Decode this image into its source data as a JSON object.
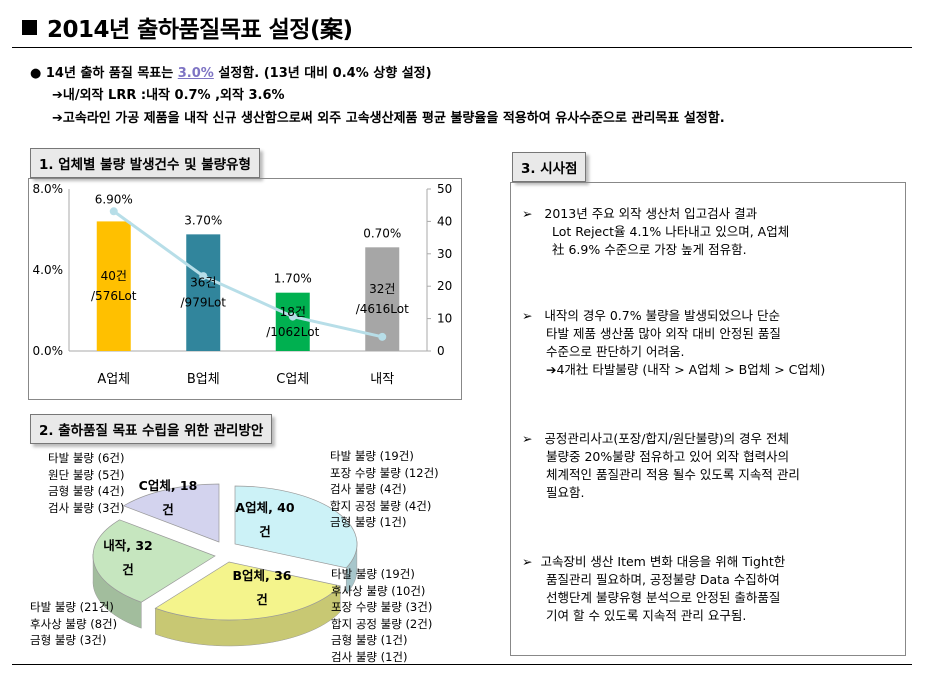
{
  "title": "2014년 출하품질목표 설정(案)",
  "intro": {
    "line1_a": "14년 출하 품질 목표는",
    "line1_target": "3.0%",
    "line1_b": "설정함. (13년 대비 0.4% 상향 설정)",
    "line2": "➔내/외작 LRR :내작 0.7% ,외작 3.6%",
    "line3": "➔고속라인 가공 제품을 내작 신규 생산함으로써 외주 고속생산제품 평균 불량율을 적용하여 유사수준으로 관리목표 설정함."
  },
  "section1": {
    "heading": "1. 업체별 불량 발생건수 및 불량유형"
  },
  "section2": {
    "heading": "2. 출하품질 목표 수립을 위한 관리방안"
  },
  "section3": {
    "heading": "3. 시사점"
  },
  "chart_data": [
    {
      "type": "bar",
      "categories": [
        "A업체",
        "B업체",
        "C업체",
        "내작"
      ],
      "series": [
        {
          "values": [
            40,
            36,
            18,
            32
          ],
          "axis": "right",
          "colors": [
            "#ffc000",
            "#31859c",
            "#00b050",
            "#a6a6a6"
          ]
        },
        {
          "type": "line",
          "values": [
            6.9,
            3.7,
            1.7,
            0.7
          ],
          "axis": "left",
          "color": "#b7dee8"
        }
      ],
      "bar_labels": [
        [
          "40건",
          "/576Lot"
        ],
        [
          "36건",
          "/979Lot"
        ],
        [
          "18건",
          "/1062Lot"
        ],
        [
          "32건",
          "/4616Lot"
        ]
      ],
      "rate_labels": [
        "6.90%",
        "3.70%",
        "1.70%",
        "0.70%"
      ],
      "left_ticks": [
        "8.0%",
        "4.0%",
        "0.0%"
      ],
      "right_ticks": [
        "50",
        "40",
        "30",
        "20",
        "10",
        "0"
      ],
      "ylim_left": [
        0,
        8
      ],
      "ylim_right": [
        0,
        50
      ]
    },
    {
      "type": "pie",
      "categories": [
        "A업체, 40건",
        "B업체, 36건",
        "내작, 32건",
        "C업체, 18건"
      ],
      "values": [
        40,
        36,
        32,
        18
      ],
      "colors": [
        "#ccf2f7",
        "#f4f48c",
        "#c6e6bf",
        "#d3d3ee"
      ]
    }
  ],
  "pie_labels": {
    "a": [
      "A업체, 40",
      "건"
    ],
    "b": [
      "B업체, 36",
      "건"
    ],
    "n": [
      "내작, 32",
      "건"
    ],
    "c": [
      "C업체, 18",
      "건"
    ]
  },
  "pie_lists": {
    "c": [
      "타발 불량 (6건)",
      "원단 불량 (5건)",
      "금형 불량 (4건)",
      "검사 불량 (3건)"
    ],
    "a": [
      "타발 불량 (19건)",
      "포장 수량 불량 (12건)",
      "검사 불량 (4건)",
      "합지 공정 불량 (4건)",
      "금형 불량 (1건)"
    ],
    "n": [
      "타발 불량 (21건)",
      "후사상 불량 (8건)",
      "금형 불량 (3건)"
    ],
    "b": [
      "타발 불량 (19건)",
      "후사상 불량 (10건)",
      "포장 수량 불량 (3건)",
      "합지 공정 불량 (2건)",
      "금형 불량 (1건)",
      "검사 불량 (1건)"
    ]
  },
  "insights": [
    [
      "2013년 주요 외작 생산처 입고검사 결과",
      "Lot Reject율 4.1% 나타내고 있으며, A업체",
      "社 6.9% 수준으로 가장 높게 점유함."
    ],
    [
      "내작의 경우 0.7% 불량을 발생되었으나 단순",
      "타발 제품 생산품 많아 외작 대비 안정된 품질",
      "수준으로 판단하기 어려움.",
      "➔4개社 타발불량 (내작 > A업체 > B업체 > C업체)"
    ],
    [
      "공정관리사고(포장/합지/원단불량)의 경우 전체",
      "불량중 20%불량 점유하고 있어 외작 협력사의",
      "체계적인 품질관리 적용 될수 있도록 지속적 관리",
      "필요함."
    ],
    [
      "고속장비 생산 Item 변화 대응을 위해 Tight한",
      "품질관리 필요하며, 공정불량 Data 수집하여",
      "선행단계 불량유형 분석으로 안정된 출하품질",
      "기여 할 수 있도록 지속적 관리 요구됨."
    ]
  ],
  "bullet_symbol": "➢"
}
